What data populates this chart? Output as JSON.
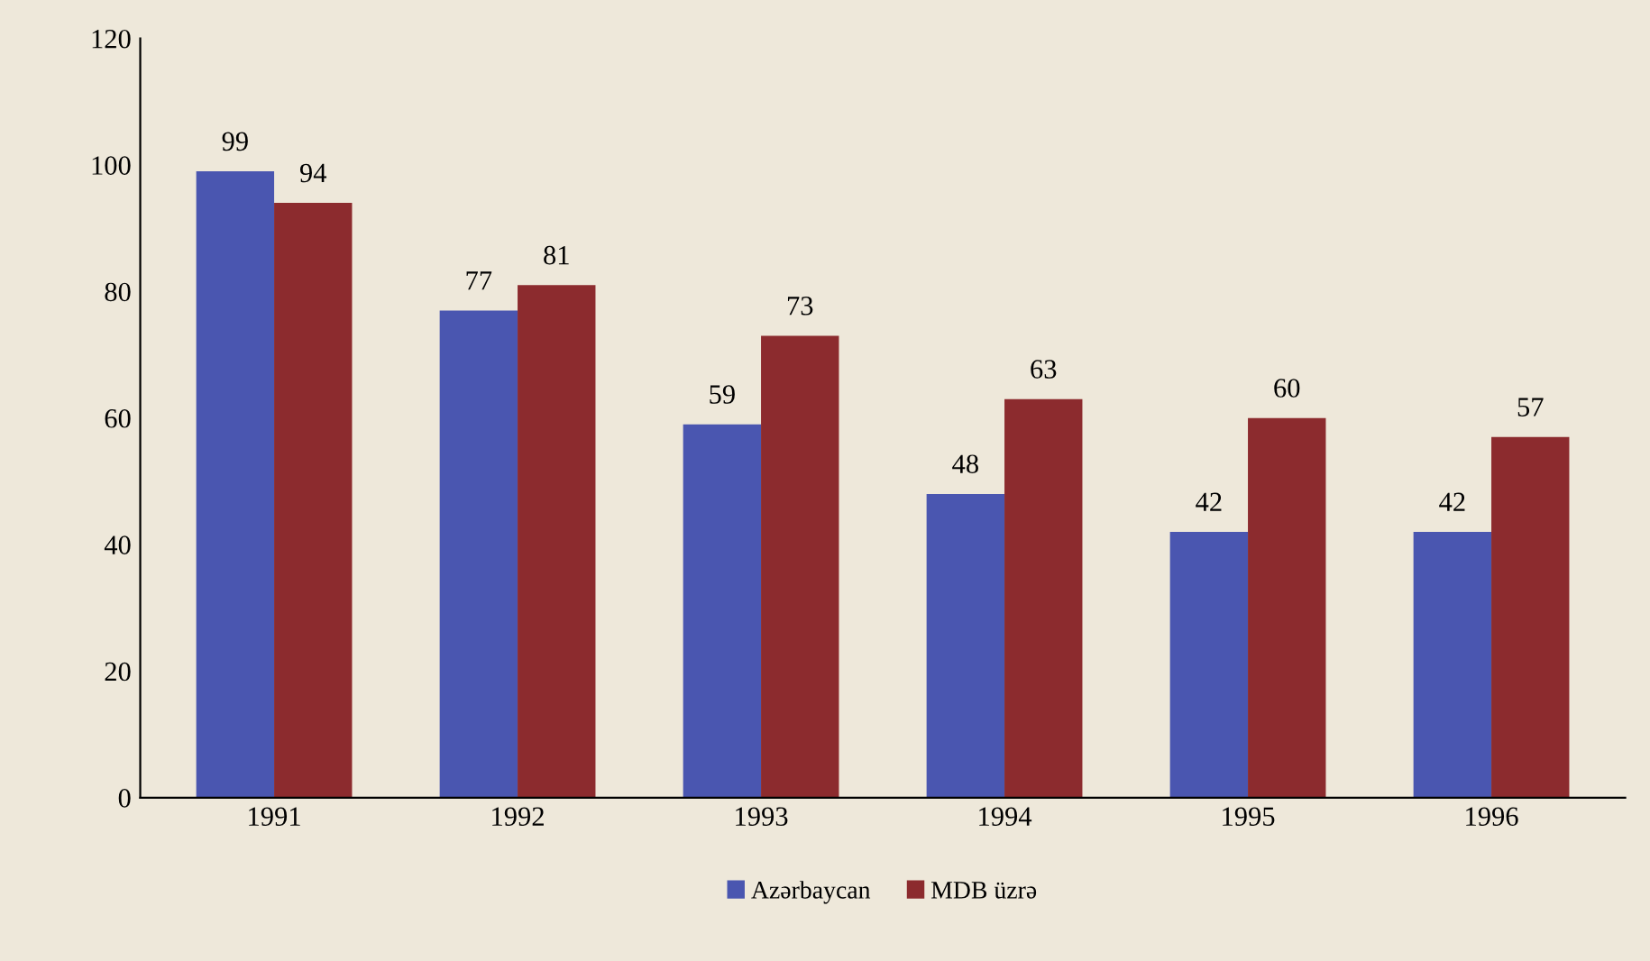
{
  "chart_data": {
    "type": "bar",
    "categories": [
      "1991",
      "1992",
      "1993",
      "1994",
      "1995",
      "1996"
    ],
    "series": [
      {
        "name": "Azərbaycan",
        "color": "#4a56b0",
        "values": [
          99,
          77,
          59,
          48,
          42,
          42
        ]
      },
      {
        "name": "MDB üzrə",
        "color": "#8c2b2e",
        "values": [
          94,
          81,
          73,
          63,
          60,
          57
        ]
      }
    ],
    "ylim": [
      0,
      120
    ],
    "yticks": [
      0,
      20,
      40,
      60,
      80,
      100,
      120
    ],
    "data_labels": true,
    "grid": false,
    "legend": "bottom"
  }
}
